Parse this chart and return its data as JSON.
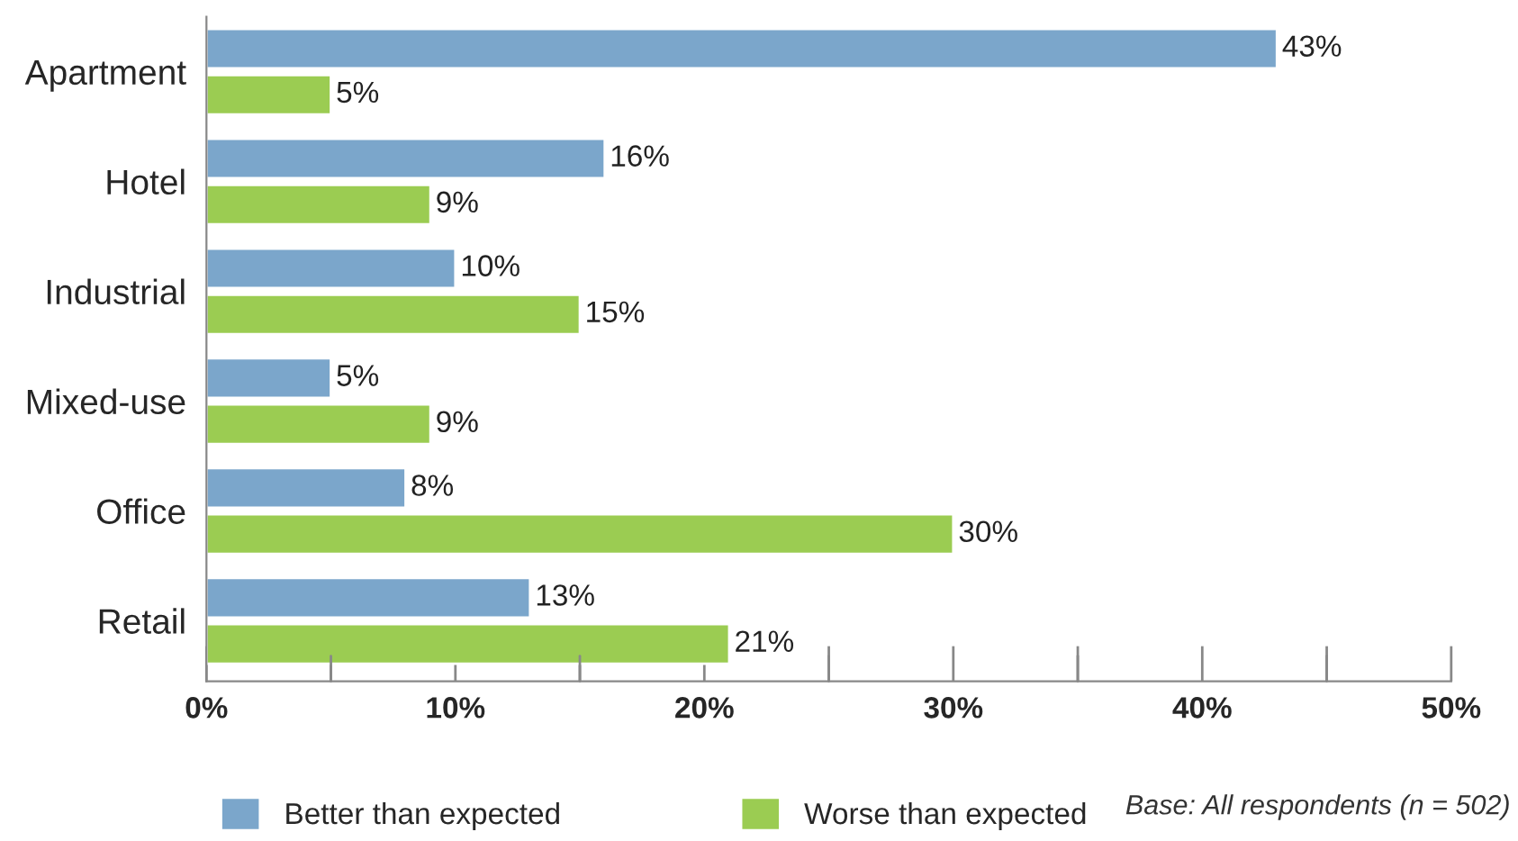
{
  "chart_data": {
    "type": "bar",
    "orientation": "horizontal",
    "categories": [
      "Apartment",
      "Hotel",
      "Industrial",
      "Mixed-use",
      "Office",
      "Retail"
    ],
    "series": [
      {
        "name": "Better than expected",
        "color": "#7ba6cb",
        "values": [
          43,
          16,
          10,
          5,
          8,
          13
        ],
        "value_labels": [
          "43%",
          "16%",
          "10%",
          "5%",
          "8%",
          "13%"
        ]
      },
      {
        "name": "Worse than expected",
        "color": "#9bcc52",
        "values": [
          5,
          9,
          15,
          9,
          30,
          21
        ],
        "value_labels": [
          "5%",
          "9%",
          "15%",
          "9%",
          "30%",
          "21%"
        ]
      }
    ],
    "xlim": [
      0,
      50
    ],
    "xticks": [
      {
        "value": 0,
        "label": "0%"
      },
      {
        "value": 5,
        "label": null
      },
      {
        "value": 10,
        "label": "10%"
      },
      {
        "value": 15,
        "label": null
      },
      {
        "value": 20,
        "label": "20%"
      },
      {
        "value": 25,
        "label": null
      },
      {
        "value": 30,
        "label": "30%"
      },
      {
        "value": 35,
        "label": null
      },
      {
        "value": 40,
        "label": "40%"
      },
      {
        "value": 45,
        "label": null
      },
      {
        "value": 50,
        "label": "50%"
      }
    ],
    "grid": false,
    "legend": "bottom",
    "annotations": [
      "Base: All respondents (n = 502)"
    ]
  }
}
